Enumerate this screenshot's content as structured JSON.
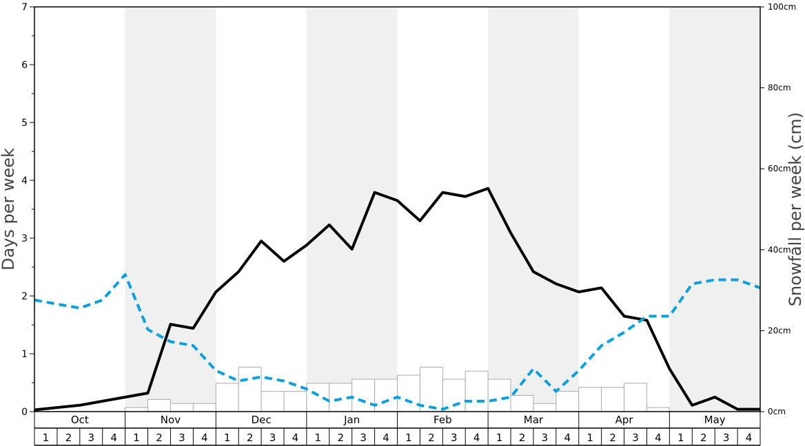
{
  "chart_data": {
    "type": "bar",
    "ylabel": "Days per week",
    "ylabel_right": "Snowfall per week (cm)",
    "ylim": [
      0,
      7
    ],
    "y_ticks": [
      "0",
      "1",
      "2",
      "3",
      "4",
      "5",
      "6",
      "7"
    ],
    "ylim_right": [
      0,
      100
    ],
    "y_right_ticks": [
      "0cm",
      "20cm",
      "40cm",
      "60cm",
      "80cm",
      "100cm"
    ],
    "months": [
      "Oct",
      "Nov",
      "Dec",
      "Jan",
      "Feb",
      "Mar",
      "Apr",
      "May"
    ],
    "weeks": [
      "1",
      "2",
      "3",
      "4"
    ],
    "shaded_months": [
      "Nov",
      "Jan",
      "Mar",
      "May"
    ],
    "colors": {
      "bars_fill": "#ffffff",
      "bars_stroke": "#aaaaaa",
      "solid_line": "#000000",
      "dashed_line": "#0aa0e0",
      "shade": "#f0f0f0"
    },
    "series": [
      {
        "type": "bar",
        "axis": "right",
        "values": [
          0,
          0,
          0,
          0,
          1,
          3,
          2,
          2,
          7,
          11,
          5,
          5,
          7,
          7,
          8,
          8,
          9,
          11,
          8,
          10,
          8,
          4,
          2,
          5,
          6,
          6,
          7,
          1,
          0,
          0,
          0,
          0
        ]
      },
      {
        "type": "line",
        "style": "solid",
        "axis": "left",
        "values": [
          0.03,
          0.07,
          0.11,
          0.18,
          0.25,
          0.32,
          1.51,
          1.44,
          2.07,
          2.42,
          2.95,
          2.6,
          2.88,
          3.23,
          2.81,
          3.79,
          3.65,
          3.3,
          3.79,
          3.72,
          3.86,
          3.09,
          2.42,
          2.21,
          2.07,
          2.14,
          1.65,
          1.58,
          0.74,
          0.11,
          0.25,
          0.04,
          0.04
        ]
      },
      {
        "type": "line",
        "style": "dashed",
        "axis": "left",
        "values": [
          1.93,
          1.86,
          1.79,
          1.93,
          2.37,
          1.42,
          1.21,
          1.14,
          0.71,
          0.53,
          0.6,
          0.53,
          0.39,
          0.18,
          0.25,
          0.11,
          0.25,
          0.11,
          0.04,
          0.18,
          0.18,
          0.25,
          0.74,
          0.35,
          0.71,
          1.14,
          1.37,
          1.65,
          1.65,
          2.21,
          2.28,
          2.28,
          2.14
        ]
      }
    ]
  }
}
